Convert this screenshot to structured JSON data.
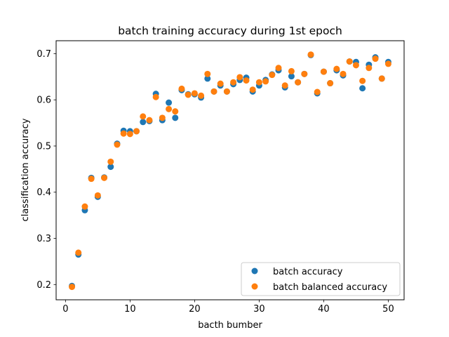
{
  "chart_data": {
    "type": "scatter",
    "title": "batch training accuracy during 1st epoch",
    "xlabel": "bacth bumber",
    "ylabel": "classification accuracy",
    "xlim": [
      -1.45,
      52.45
    ],
    "ylim": [
      0.167,
      0.728
    ],
    "xticks": [
      0,
      10,
      20,
      30,
      40,
      50
    ],
    "yticks": [
      0.2,
      0.3,
      0.4,
      0.5,
      0.6,
      0.7
    ],
    "grid": false,
    "legend_position": "lower right",
    "x": [
      1,
      2,
      3,
      4,
      5,
      6,
      7,
      8,
      9,
      10,
      11,
      12,
      13,
      14,
      15,
      16,
      17,
      18,
      19,
      20,
      21,
      22,
      23,
      24,
      25,
      26,
      27,
      28,
      29,
      30,
      31,
      32,
      33,
      34,
      35,
      36,
      37,
      38,
      39,
      40,
      41,
      42,
      43,
      44,
      45,
      46,
      47,
      48,
      49,
      50
    ],
    "series": [
      {
        "name": "batch accuracy",
        "color": "#1f77b4",
        "values": [
          0.197,
          0.265,
          0.361,
          0.431,
          0.39,
          0.432,
          0.455,
          0.505,
          0.533,
          0.532,
          0.532,
          0.552,
          0.554,
          0.613,
          0.556,
          0.594,
          0.561,
          0.621,
          0.612,
          0.612,
          0.605,
          0.646,
          0.618,
          0.631,
          0.618,
          0.634,
          0.643,
          0.648,
          0.618,
          0.631,
          0.643,
          0.655,
          0.664,
          0.627,
          0.651,
          0.638,
          0.656,
          0.697,
          0.614,
          0.661,
          0.636,
          0.664,
          0.653,
          0.683,
          0.682,
          0.625,
          0.676,
          0.692,
          0.646,
          0.682
        ]
      },
      {
        "name": "batch balanced accuracy",
        "color": "#ff7f0e",
        "values": [
          0.195,
          0.269,
          0.369,
          0.429,
          0.393,
          0.431,
          0.466,
          0.503,
          0.527,
          0.526,
          0.532,
          0.564,
          0.556,
          0.606,
          0.561,
          0.58,
          0.575,
          0.624,
          0.611,
          0.614,
          0.609,
          0.656,
          0.618,
          0.635,
          0.618,
          0.638,
          0.649,
          0.642,
          0.622,
          0.638,
          0.64,
          0.654,
          0.669,
          0.631,
          0.662,
          0.638,
          0.656,
          0.698,
          0.617,
          0.661,
          0.636,
          0.667,
          0.656,
          0.683,
          0.675,
          0.641,
          0.669,
          0.689,
          0.646,
          0.678
        ]
      }
    ]
  }
}
